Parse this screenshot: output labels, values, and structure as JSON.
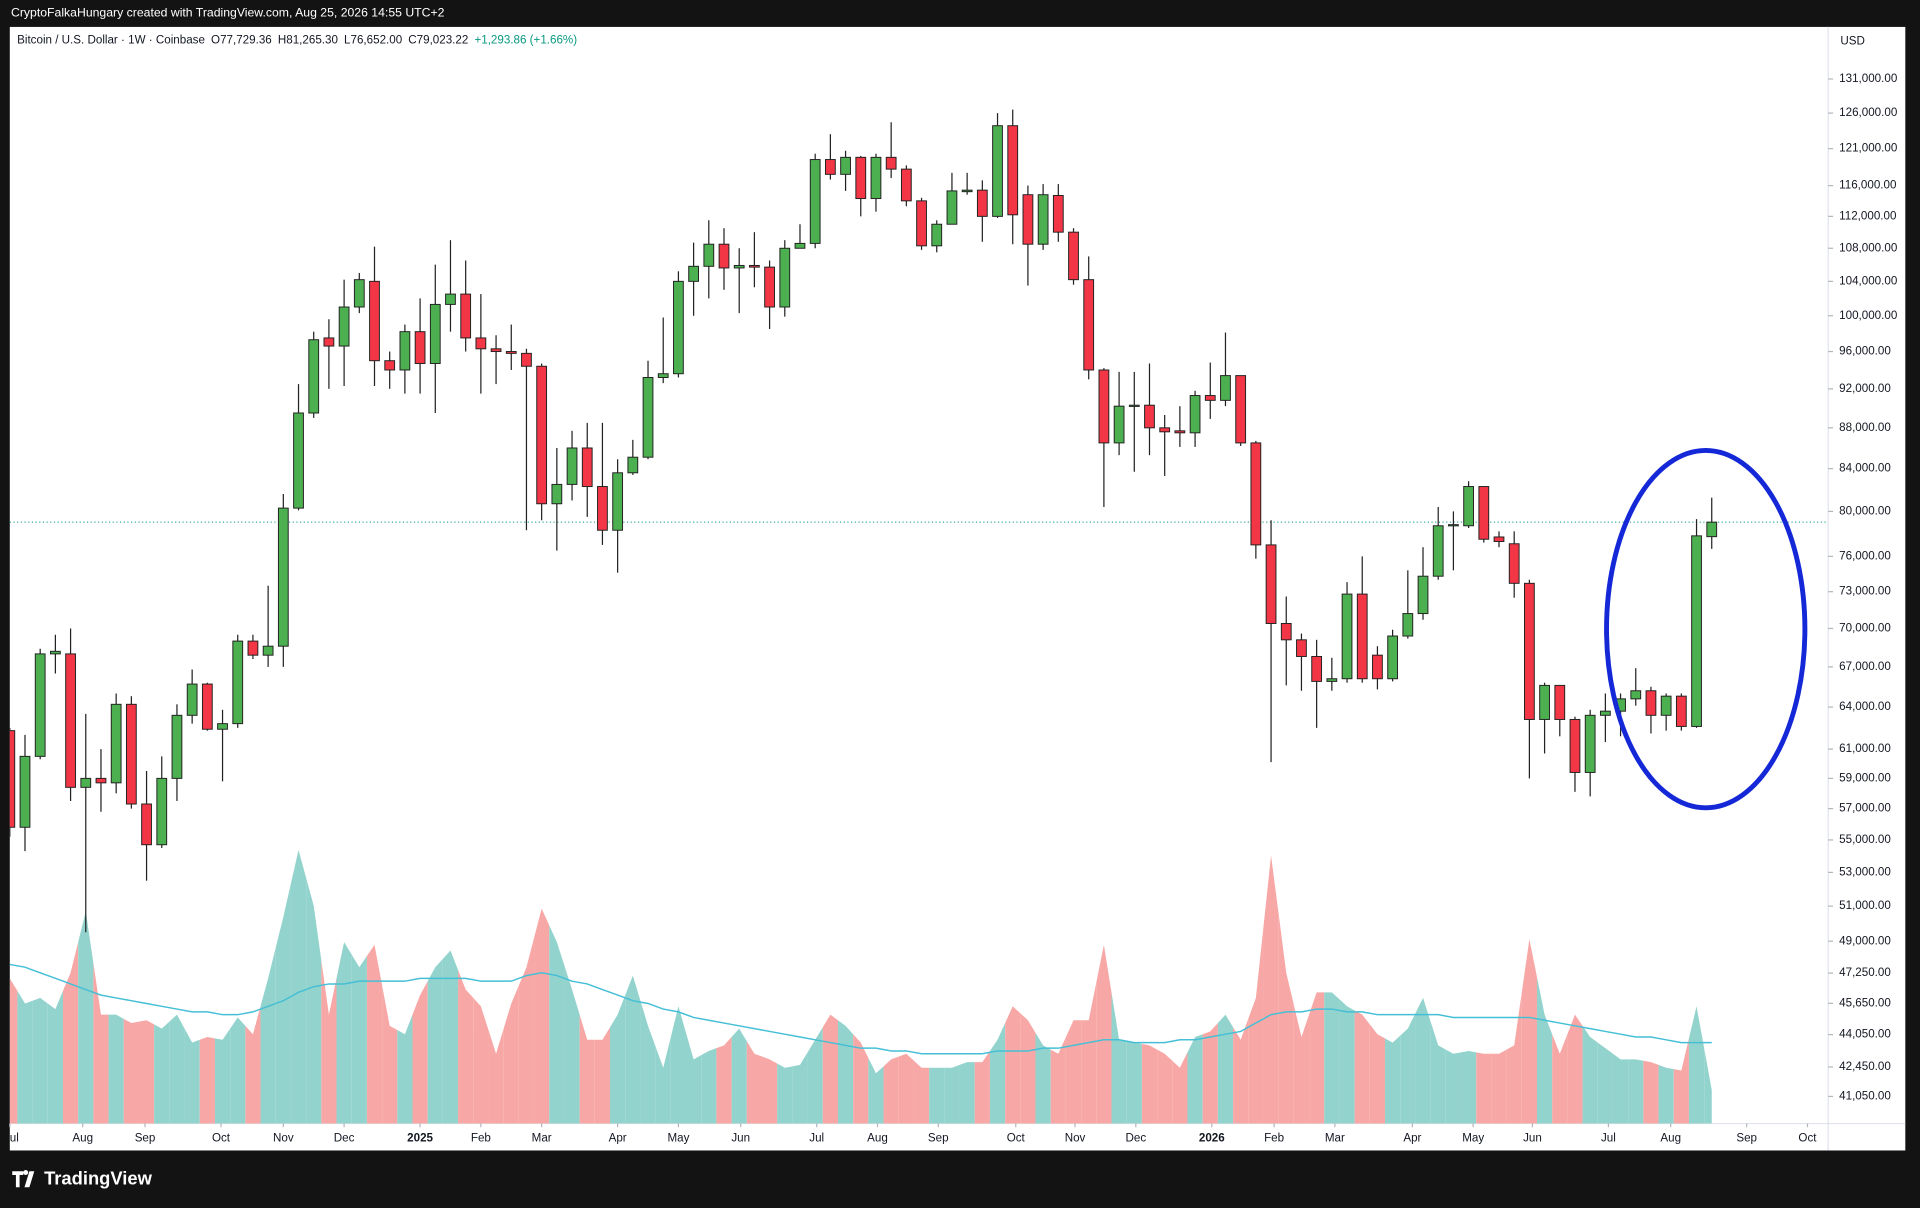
{
  "header": "CryptoFalkaHungary created with TradingView.com, Aug 25, 2026 14:55 UTC+2",
  "logo": "TradingView",
  "chart_data": {
    "type": "candlestick",
    "legend": [
      "Bitcoin / U.S. Dollar · 1W · Coinbase",
      "O77,729.36",
      "H81,265.30",
      "L76,652.00",
      "C79,023.22",
      "+1,293.86 (+1.66%)"
    ],
    "currency": "USD",
    "log_scale": true,
    "up_color": "#4caf50",
    "down_color": "#f23645",
    "volume_up_color": "#93d3cd",
    "volume_down_color": "#f7a8a6",
    "volume_ma_color": "#45bfd6",
    "open": [
      62300,
      55800,
      60500,
      68000,
      68000,
      58400,
      59000,
      58700,
      64200,
      57300,
      54700,
      59000,
      63400,
      65700,
      62400,
      62800,
      69000,
      67900,
      68600,
      80300,
      89500,
      97500,
      96600,
      101000,
      104000,
      95000,
      94000,
      98200,
      94700,
      101300,
      102500,
      97500,
      96300,
      96000,
      95800,
      94400,
      80700,
      82500,
      86000,
      82300,
      78300,
      83600,
      85100,
      93200,
      93600,
      104000,
      105800,
      108500,
      105600,
      105900,
      105700,
      101000,
      108000,
      108600,
      119500,
      117500,
      119800,
      114300,
      119800,
      118200,
      114000,
      108300,
      111000,
      115200,
      115400,
      112000,
      124200,
      114800,
      108500,
      114700,
      110000,
      104200,
      94000,
      86500,
      90200,
      90300,
      88000,
      87700,
      87500,
      91300,
      90800,
      93400,
      86500,
      77000,
      70400,
      69100,
      67800,
      65900,
      66100,
      72800,
      67900,
      66100,
      69400,
      71200,
      74300,
      78700,
      78700,
      82300,
      77700,
      77100,
      73700,
      63100,
      65600,
      63100,
      59400,
      63400,
      63700,
      64600,
      65200,
      63400,
      64800,
      62600,
      77729.36
    ],
    "high": [
      62500,
      62000,
      68400,
      69500,
      70000,
      63500,
      61000,
      65000,
      64800,
      59500,
      60500,
      64200,
      66800,
      65800,
      63800,
      69500,
      69500,
      73500,
      81600,
      92500,
      98200,
      99600,
      104200,
      105000,
      108200,
      96000,
      99000,
      102000,
      106000,
      109000,
      106500,
      102500,
      97800,
      99000,
      96300,
      94700,
      86000,
      87700,
      88500,
      88500,
      84900,
      86800,
      95000,
      99800,
      105200,
      108700,
      111500,
      110500,
      108000,
      110000,
      106500,
      109000,
      111000,
      120300,
      123000,
      120700,
      120000,
      120300,
      124700,
      118700,
      114400,
      111500,
      117700,
      117700,
      116700,
      126000,
      126500,
      116000,
      116200,
      116200,
      110500,
      107000,
      94200,
      93800,
      93800,
      94700,
      89300,
      90200,
      91800,
      94800,
      98100,
      93400,
      86700,
      79200,
      72600,
      69600,
      69100,
      67700,
      73800,
      76000,
      68600,
      69900,
      74800,
      76800,
      80400,
      80000,
      82800,
      82300,
      78200,
      78200,
      74000,
      65800,
      65600,
      63300,
      63800,
      65000,
      65000,
      66900,
      65500,
      65000,
      65000,
      79300,
      81265.3
    ],
    "low": [
      55200,
      54300,
      60300,
      66500,
      57500,
      49500,
      56800,
      58000,
      57000,
      52500,
      54500,
      57500,
      62800,
      62300,
      58800,
      62500,
      67600,
      67000,
      67000,
      80100,
      89000,
      92000,
      92300,
      100300,
      92300,
      92000,
      91500,
      91500,
      89500,
      98200,
      96000,
      91500,
      92500,
      94000,
      78300,
      79200,
      76500,
      81000,
      79500,
      77000,
      74600,
      83400,
      84900,
      92600,
      93200,
      100000,
      102000,
      103000,
      100300,
      103300,
      98500,
      99900,
      108000,
      108000,
      116800,
      115300,
      112000,
      112600,
      117000,
      113300,
      107800,
      107500,
      111000,
      114800,
      108800,
      111800,
      108500,
      103500,
      107800,
      108800,
      103600,
      93000,
      80400,
      85300,
      83700,
      85300,
      83300,
      86100,
      86100,
      88900,
      90200,
      86200,
      75800,
      60100,
      65600,
      65200,
      62500,
      65200,
      65800,
      65800,
      65300,
      65900,
      69200,
      70700,
      74000,
      74800,
      78500,
      77200,
      76800,
      72500,
      59000,
      60700,
      61900,
      58100,
      57800,
      61500,
      61900,
      64100,
      62100,
      62300,
      62300,
      62500,
      76652
    ],
    "close": [
      55800,
      60500,
      68000,
      68200,
      58400,
      59000,
      58700,
      64200,
      57300,
      54700,
      59000,
      63400,
      65700,
      62400,
      62800,
      69000,
      67900,
      68600,
      80300,
      89500,
      97300,
      96600,
      101000,
      104200,
      95000,
      94000,
      98200,
      94700,
      101300,
      102500,
      97500,
      96300,
      96000,
      95800,
      94400,
      80700,
      82500,
      86000,
      82300,
      78300,
      83600,
      85100,
      93200,
      93600,
      104000,
      105800,
      108500,
      105600,
      105900,
      105700,
      101000,
      108000,
      108600,
      119500,
      117500,
      119800,
      114300,
      119800,
      118200,
      114000,
      108300,
      111000,
      115300,
      115400,
      112000,
      124200,
      112200,
      108500,
      114800,
      110000,
      104200,
      94000,
      86500,
      90200,
      90300,
      88000,
      87600,
      87500,
      91300,
      90800,
      93400,
      86500,
      77000,
      70400,
      69100,
      67800,
      65900,
      66100,
      72800,
      66100,
      66100,
      69400,
      71200,
      74300,
      78700,
      78800,
      82300,
      77500,
      77300,
      73700,
      63100,
      65600,
      63100,
      59400,
      63400,
      63700,
      64600,
      65200,
      63400,
      64800,
      62600,
      77800,
      79023.22
    ],
    "volume": [
      52,
      43,
      45,
      41,
      54,
      76,
      39,
      39,
      36,
      37,
      34,
      39,
      29,
      31,
      30,
      38,
      32,
      52,
      74,
      98,
      78,
      39,
      65,
      56,
      64,
      35,
      32,
      46,
      56,
      62,
      48,
      42,
      25,
      43,
      56,
      77,
      65,
      48,
      30,
      30,
      39,
      53,
      35,
      20,
      42,
      23,
      26,
      28,
      34,
      25,
      23,
      20,
      21,
      30,
      39,
      35,
      29,
      18,
      23,
      25,
      20,
      20,
      20,
      22,
      22,
      30,
      42,
      37,
      28,
      25,
      37,
      37,
      64,
      30,
      29,
      28,
      25,
      20,
      31,
      33,
      39,
      30,
      45,
      96,
      54,
      31,
      47,
      47,
      42,
      39,
      32,
      29,
      34,
      45,
      28,
      25,
      26,
      25,
      25,
      28,
      66,
      39,
      25,
      39,
      31,
      27,
      23,
      23,
      22,
      20,
      19,
      42,
      12
    ],
    "volume_ma": [
      57,
      56,
      54,
      52,
      50,
      48,
      46,
      45,
      44,
      43,
      42,
      41,
      40,
      40,
      39,
      39,
      40,
      42,
      44,
      47,
      49,
      50,
      50,
      51,
      51,
      51,
      51,
      52,
      52,
      52,
      52,
      51,
      51,
      51,
      53,
      54,
      53,
      51,
      50,
      48,
      46,
      44,
      43,
      41,
      40,
      38,
      37,
      36,
      35,
      34,
      33,
      32,
      31,
      30,
      29,
      28,
      27,
      27,
      26,
      26,
      25,
      25,
      25,
      25,
      25,
      26,
      26,
      26,
      27,
      27,
      28,
      29,
      30,
      30,
      29,
      29,
      29,
      30,
      30,
      31,
      32,
      33,
      36,
      39,
      40,
      40,
      41,
      41,
      40,
      40,
      39,
      39,
      39,
      39,
      39,
      38,
      38,
      38,
      38,
      38,
      38,
      37,
      36,
      35,
      34,
      33,
      32,
      31,
      31,
      30,
      29,
      29,
      29
    ],
    "volume_ylim": [
      0,
      100
    ],
    "ylim": [
      39800,
      139400
    ],
    "yticks": [
      {
        "value": 131000,
        "label": "131,000.00"
      },
      {
        "value": 126000,
        "label": "126,000.00"
      },
      {
        "value": 121000,
        "label": "121,000.00"
      },
      {
        "value": 116000,
        "label": "116,000.00"
      },
      {
        "value": 112000,
        "label": "112,000.00"
      },
      {
        "value": 108000,
        "label": "108,000.00"
      },
      {
        "value": 104000,
        "label": "104,000.00"
      },
      {
        "value": 100000,
        "label": "100,000.00"
      },
      {
        "value": 96000,
        "label": "96,000.00"
      },
      {
        "value": 92000,
        "label": "92,000.00"
      },
      {
        "value": 88000,
        "label": "88,000.00"
      },
      {
        "value": 84000,
        "label": "84,000.00"
      },
      {
        "value": 80000,
        "label": "80,000.00"
      },
      {
        "value": 76000,
        "label": "76,000.00"
      },
      {
        "value": 73000,
        "label": "73,000.00"
      },
      {
        "value": 70000,
        "label": "70,000.00"
      },
      {
        "value": 67000,
        "label": "67,000.00"
      },
      {
        "value": 64000,
        "label": "64,000.00"
      },
      {
        "value": 61000,
        "label": "61,000.00"
      },
      {
        "value": 59000,
        "label": "59,000.00"
      },
      {
        "value": 57000,
        "label": "57,000.00"
      },
      {
        "value": 55000,
        "label": "55,000.00"
      },
      {
        "value": 53000,
        "label": "53,000.00"
      },
      {
        "value": 51000,
        "label": "51,000.00"
      },
      {
        "value": 49000,
        "label": "49,000.00"
      },
      {
        "value": 47250,
        "label": "47,250.00"
      },
      {
        "value": 45650,
        "label": "45,650.00"
      },
      {
        "value": 44050,
        "label": "44,050.00"
      },
      {
        "value": 42450,
        "label": "42,450.00"
      },
      {
        "value": 41050,
        "label": "41,050.00"
      }
    ],
    "xticks": [
      {
        "value": 0,
        "label": "ul"
      },
      {
        "value": 4.8,
        "label": "Aug"
      },
      {
        "value": 8.9,
        "label": "Sep"
      },
      {
        "value": 13.9,
        "label": "Oct"
      },
      {
        "value": 18,
        "label": "Nov"
      },
      {
        "value": 22,
        "label": "Dec"
      },
      {
        "value": 27,
        "label": "2025"
      },
      {
        "value": 31,
        "label": "Feb"
      },
      {
        "value": 35,
        "label": "Mar"
      },
      {
        "value": 40,
        "label": "Apr"
      },
      {
        "value": 44,
        "label": "May"
      },
      {
        "value": 48.1,
        "label": "Jun"
      },
      {
        "value": 53.1,
        "label": "Jul"
      },
      {
        "value": 57.1,
        "label": "Aug"
      },
      {
        "value": 61.1,
        "label": "Sep"
      },
      {
        "value": 66.2,
        "label": "Oct"
      },
      {
        "value": 70.1,
        "label": "Nov"
      },
      {
        "value": 74.1,
        "label": "Dec"
      },
      {
        "value": 79.1,
        "label": "2026"
      },
      {
        "value": 83.2,
        "label": "Feb"
      },
      {
        "value": 87.2,
        "label": "Mar"
      },
      {
        "value": 92.3,
        "label": "Apr"
      },
      {
        "value": 96.3,
        "label": "May"
      },
      {
        "value": 100.2,
        "label": "Jun"
      },
      {
        "value": 105.2,
        "label": "Jul"
      },
      {
        "value": 109.3,
        "label": "Aug"
      },
      {
        "value": 114.3,
        "label": "Sep"
      },
      {
        "value": 118.3,
        "label": "Oct"
      }
    ]
  }
}
